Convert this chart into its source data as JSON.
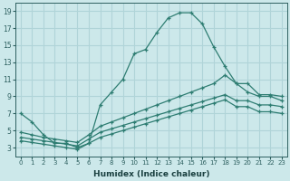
{
  "xlabel": "Humidex (Indice chaleur)",
  "ylabel": "",
  "bg_color": "#cce8ea",
  "grid_color": "#b0d4d8",
  "line_color": "#2e7d72",
  "xlim": [
    -0.5,
    23.5
  ],
  "ylim": [
    2.0,
    20.0
  ],
  "xticks": [
    0,
    1,
    2,
    3,
    4,
    5,
    6,
    7,
    8,
    9,
    10,
    11,
    12,
    13,
    14,
    15,
    16,
    17,
    18,
    19,
    20,
    21,
    22,
    23
  ],
  "yticks": [
    3,
    5,
    7,
    9,
    11,
    13,
    15,
    17,
    19
  ],
  "line1_x": [
    0,
    1,
    2,
    3,
    4,
    5,
    6,
    7,
    8,
    9,
    10,
    11,
    12,
    13,
    14,
    15,
    16,
    17,
    18,
    19,
    20,
    21,
    22,
    23
  ],
  "line1_y": [
    7.0,
    6.0,
    4.5,
    3.5,
    3.5,
    3.0,
    3.5,
    8.0,
    9.5,
    11.0,
    14.0,
    14.5,
    16.5,
    18.2,
    18.8,
    18.8,
    17.5,
    14.8,
    12.5,
    10.5,
    9.5,
    9.0,
    9.0,
    8.5
  ],
  "line2_x": [
    0,
    1,
    2,
    3,
    4,
    5,
    6,
    7,
    8,
    9,
    10,
    11,
    12,
    13,
    14,
    15,
    16,
    17,
    18,
    19,
    20,
    21,
    22,
    23
  ],
  "line2_y": [
    4.8,
    4.5,
    4.2,
    4.0,
    3.8,
    3.6,
    4.5,
    5.5,
    6.0,
    6.5,
    7.0,
    7.5,
    8.0,
    8.5,
    9.0,
    9.5,
    10.0,
    10.5,
    11.5,
    10.5,
    10.5,
    9.2,
    9.2,
    9.0
  ],
  "line3_x": [
    0,
    1,
    2,
    3,
    4,
    5,
    6,
    7,
    8,
    9,
    10,
    11,
    12,
    13,
    14,
    15,
    16,
    17,
    18,
    19,
    20,
    21,
    22,
    23
  ],
  "line3_y": [
    4.2,
    4.0,
    3.8,
    3.6,
    3.4,
    3.2,
    4.0,
    4.8,
    5.2,
    5.6,
    6.0,
    6.4,
    6.8,
    7.2,
    7.6,
    8.0,
    8.4,
    8.8,
    9.2,
    8.5,
    8.5,
    8.0,
    8.0,
    7.8
  ],
  "line4_x": [
    0,
    1,
    2,
    3,
    4,
    5,
    6,
    7,
    8,
    9,
    10,
    11,
    12,
    13,
    14,
    15,
    16,
    17,
    18,
    19,
    20,
    21,
    22,
    23
  ],
  "line4_y": [
    3.8,
    3.6,
    3.4,
    3.2,
    3.0,
    2.8,
    3.5,
    4.2,
    4.6,
    5.0,
    5.4,
    5.8,
    6.2,
    6.6,
    7.0,
    7.4,
    7.8,
    8.2,
    8.6,
    7.8,
    7.8,
    7.2,
    7.2,
    7.0
  ]
}
